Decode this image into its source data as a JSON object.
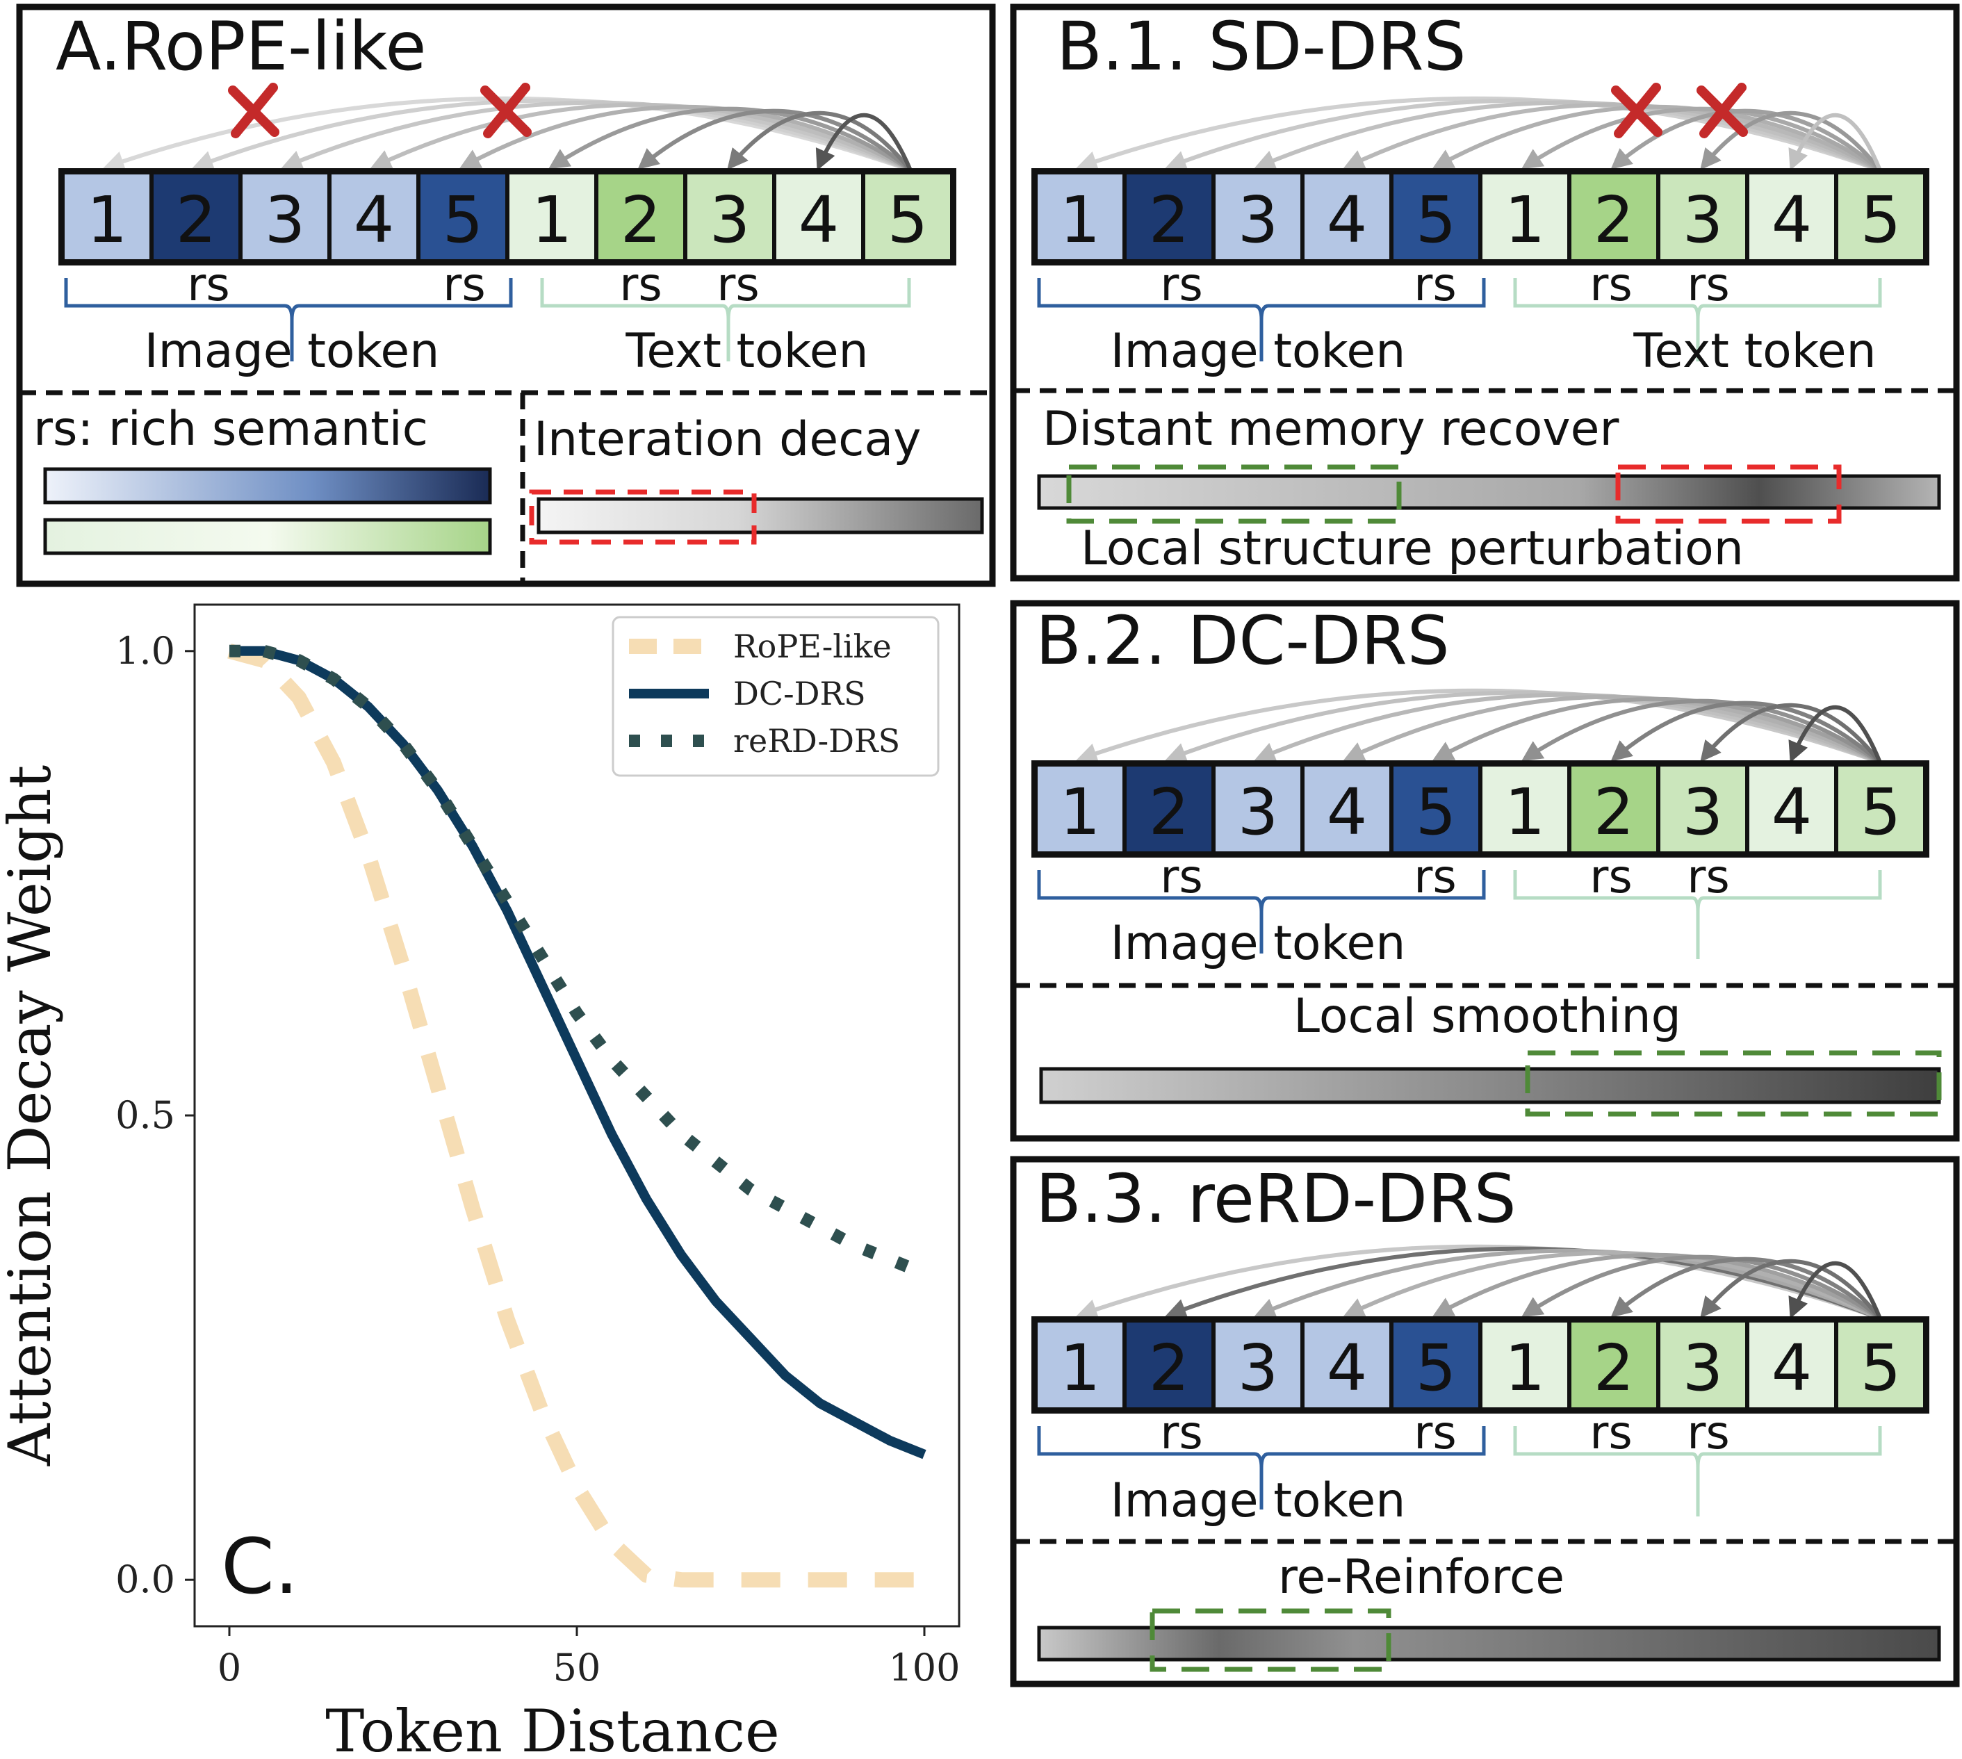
{
  "panelA": {
    "title": "A.RoPE-like",
    "tokens": [
      "1",
      "2",
      "3",
      "4",
      "5",
      "1",
      "2",
      "3",
      "4",
      "5"
    ],
    "token_colors": [
      "#b4c6e4",
      "#1d3a72",
      "#b4c6e4",
      "#b4c6e4",
      "#2a5193",
      "#e4f2e0",
      "#a6d488",
      "#cbe6bc",
      "#e4f2e0",
      "#cbe6bc"
    ],
    "rs_labels": [
      "rs",
      "rs",
      "rs",
      "rs"
    ],
    "image_label": "Image token",
    "text_label": "Text token",
    "legend_text": "rs: rich semantic",
    "decay_text": "Interation decay",
    "rs_gradient_blue": [
      "#eef2fa",
      "#1a2b55"
    ],
    "rs_gradient_green": [
      "#e4f2e0",
      "#a6d488"
    ]
  },
  "panelB1": {
    "title": "B.1. SD-DRS",
    "rs_labels": [
      "rs",
      "rs",
      "rs",
      "rs"
    ],
    "image_label": "Image token",
    "text_label": "Text token",
    "top_caption": "Distant memory recover",
    "bottom_caption": "Local structure perturbation"
  },
  "panelB2": {
    "title": "B.2. DC-DRS",
    "rs_labels": [
      "rs",
      "rs",
      "rs",
      "rs"
    ],
    "image_label": "Image token",
    "caption": "Local smoothing"
  },
  "panelB3": {
    "title": "B.3. reRD-DRS",
    "rs_labels": [
      "rs",
      "rs",
      "rs",
      "rs"
    ],
    "image_label": "Image token",
    "caption": "re-Reinforce"
  },
  "panelC": {
    "label": "C.",
    "chart_data": {
      "type": "line",
      "xlabel": "Token Distance",
      "ylabel": "Attention Decay Weight",
      "xlim": [
        -5,
        105
      ],
      "ylim": [
        -0.05,
        1.05
      ],
      "xticks": [
        0,
        50,
        100
      ],
      "yticks": [
        0.0,
        0.5,
        1.0
      ],
      "xtick_labels": [
        "0",
        "50",
        "100"
      ],
      "ytick_labels": [
        "0.0",
        "0.5",
        "1.0"
      ],
      "grid": false,
      "legend_position": "top-right",
      "series": [
        {
          "name": "RoPE-like",
          "style": "dashed",
          "color": "#f6ddb4",
          "x": [
            0,
            5,
            10,
            15,
            20,
            25,
            30,
            35,
            40,
            45,
            50,
            55,
            60,
            65,
            70,
            75,
            80,
            85,
            90,
            95,
            100
          ],
          "y": [
            1.0,
            0.99,
            0.95,
            0.88,
            0.78,
            0.66,
            0.53,
            0.4,
            0.28,
            0.18,
            0.1,
            0.04,
            0.005,
            0.0,
            0.0,
            0.0,
            0.0,
            0.0,
            0.0,
            0.0,
            0.0
          ]
        },
        {
          "name": "DC-DRS",
          "style": "solid",
          "color": "#0d3a5c",
          "x": [
            0,
            5,
            10,
            15,
            20,
            25,
            30,
            35,
            40,
            45,
            50,
            55,
            60,
            65,
            70,
            75,
            80,
            85,
            90,
            95,
            100
          ],
          "y": [
            1.0,
            1.0,
            0.99,
            0.97,
            0.94,
            0.9,
            0.85,
            0.79,
            0.72,
            0.64,
            0.56,
            0.48,
            0.41,
            0.35,
            0.3,
            0.26,
            0.22,
            0.19,
            0.17,
            0.15,
            0.135
          ]
        },
        {
          "name": "reRD-DRS",
          "style": "dotted",
          "color": "#2e4f4f",
          "x": [
            0,
            5,
            10,
            15,
            20,
            25,
            30,
            35,
            40,
            45,
            50,
            55,
            60,
            65,
            70,
            75,
            80,
            85,
            90,
            95,
            100
          ],
          "y": [
            1.0,
            1.0,
            0.99,
            0.97,
            0.94,
            0.9,
            0.85,
            0.79,
            0.73,
            0.67,
            0.61,
            0.56,
            0.52,
            0.48,
            0.45,
            0.42,
            0.4,
            0.38,
            0.36,
            0.345,
            0.33
          ]
        }
      ]
    }
  }
}
